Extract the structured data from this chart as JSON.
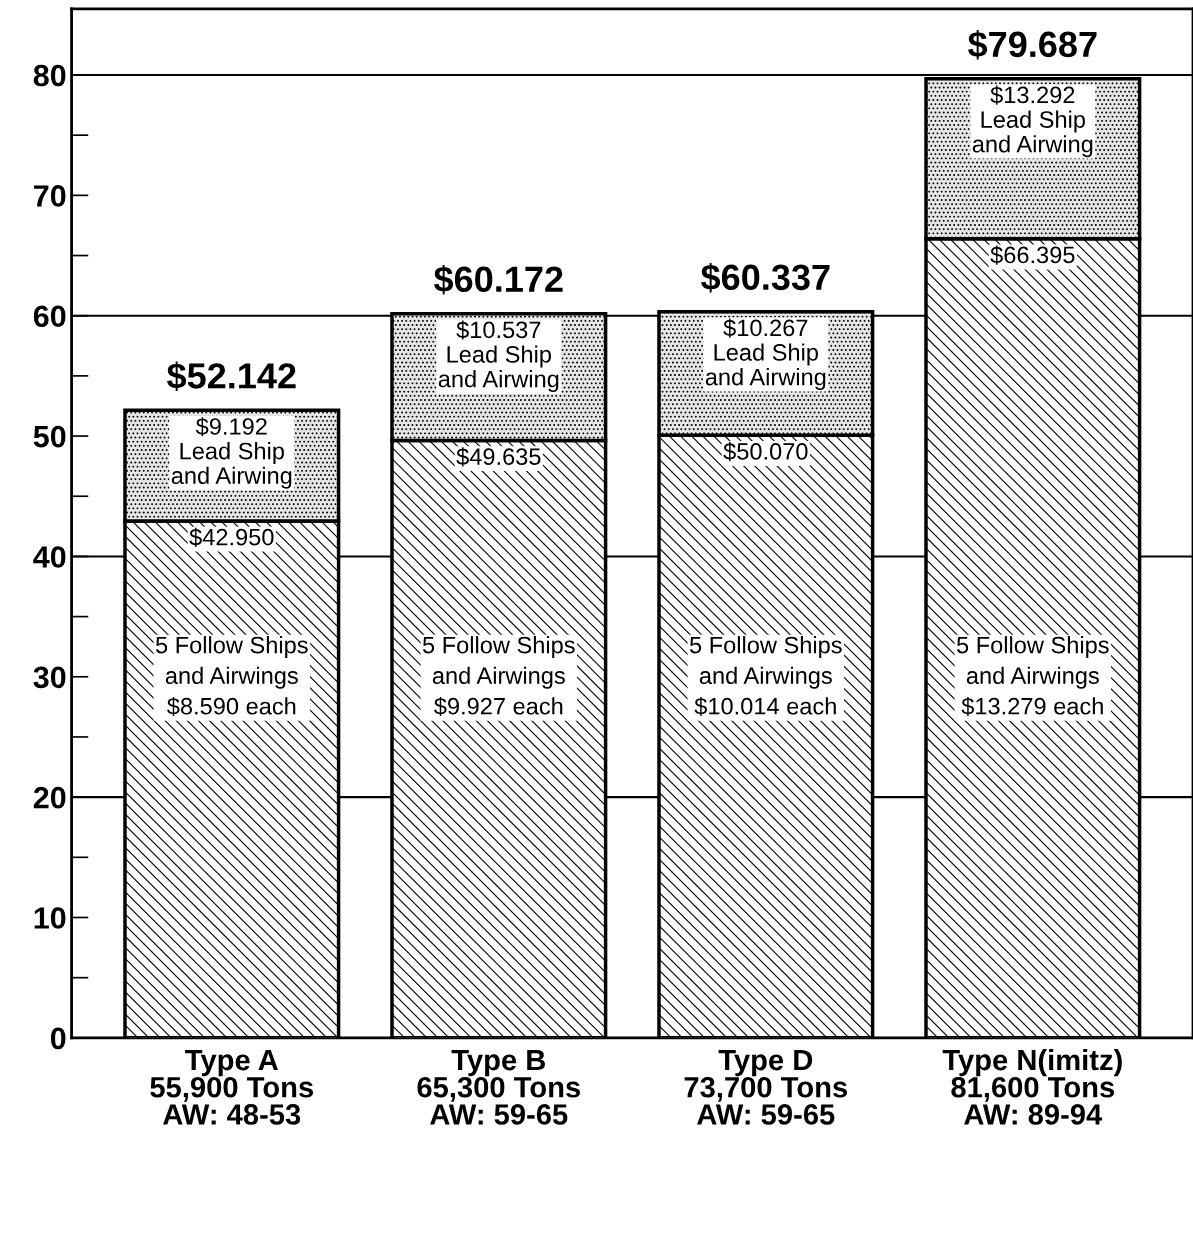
{
  "chart_data": {
    "type": "bar",
    "stacked": true,
    "categories": [
      "Type A\n55,900 Tons\nAW: 48-53",
      "Type B\n65,300 Tons\nAW: 59-65",
      "Type D\n73,700 Tons\nAW: 59-65",
      "Type N(imitz)\n81,600 Tons\nAW: 89-94"
    ],
    "series": [
      {
        "color": "#000000",
        "values": [
          42.95,
          49.635,
          50.07,
          66.395
        ],
        "value_labels": [
          "$42.950",
          "$49.635",
          "$50.070",
          "$66.395"
        ]
      },
      {
        "color": "#000000",
        "values": [
          9.192,
          10.537,
          10.267,
          13.292
        ],
        "value_labels": [
          "$9.192\nLead Ship\nand Airwing",
          "$10.537\nLead Ship\nand Airwing",
          "$10.267\nLead Ship\nand Airwing",
          "$13.292\nLead Ship\nand Airwing"
        ]
      }
    ],
    "totals": [
      "$52.142",
      "$60.172",
      "$60.337",
      "$79.687"
    ],
    "annotations": [
      "5 Follow Ships\nand Airwings\n$8.590 each",
      "5 Follow Ships\nand Airwings\n$9.927 each",
      "5 Follow Ships\nand Airwings\n$10.014 each",
      "5 Follow Ships\nand Airwings\n$13.279 each"
    ],
    "ylim": [
      0,
      85.5
    ],
    "yticks": [
      0,
      10,
      20,
      30,
      40,
      50,
      60,
      70,
      80
    ],
    "ref_lines": [
      {
        "axis": "y",
        "value": 20
      },
      {
        "axis": "y",
        "value": 40
      },
      {
        "axis": "y",
        "value": 60
      },
      {
        "axis": "y",
        "value": 80
      }
    ],
    "grid": false
  }
}
